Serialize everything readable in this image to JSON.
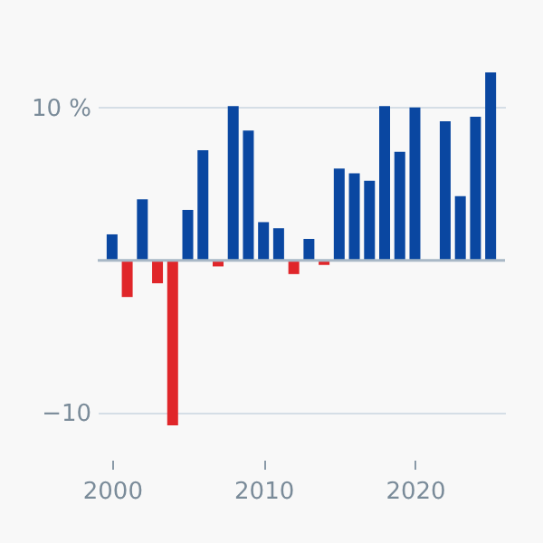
{
  "chart_data": {
    "type": "bar",
    "x": [
      2000,
      2001,
      2002,
      2003,
      2004,
      2005,
      2006,
      2007,
      2008,
      2009,
      2010,
      2011,
      2012,
      2013,
      2014,
      2015,
      2016,
      2017,
      2018,
      2019,
      2020,
      2021,
      2022,
      2023,
      2024,
      2025
    ],
    "values": [
      1.7,
      -2.4,
      4.0,
      -1.5,
      -10.8,
      3.3,
      7.2,
      -0.4,
      10.1,
      8.5,
      2.5,
      2.1,
      -0.9,
      1.4,
      -0.3,
      6.0,
      5.7,
      5.2,
      10.1,
      7.1,
      10.0,
      null,
      9.1,
      4.2,
      9.4,
      12.3
    ],
    "colors": [
      "#0a47a1",
      "#e0262a",
      "#0a47a1",
      "#e0262a",
      "#e0262a",
      "#0a47a1",
      "#0a47a1",
      "#e0262a",
      "#0a47a1",
      "#0a47a1",
      "#0a47a1",
      "#0a47a1",
      "#e0262a",
      "#0a47a1",
      "#e0262a",
      "#0a47a1",
      "#0a47a1",
      "#0a47a1",
      "#0a47a1",
      "#0a47a1",
      "#0a47a1",
      "#0a47a1",
      "#0a47a1",
      "#0a47a1",
      "#0a47a1",
      "#0a47a1"
    ],
    "xlim": [
      1999.65,
      2025.35
    ],
    "xticks": [
      2000,
      2010,
      2020
    ],
    "ylim": [
      -10.8,
      12.3
    ],
    "yticks": [
      {
        "value": -10,
        "label": "−10"
      },
      {
        "value": 10,
        "label": "10 %"
      }
    ],
    "ref_lines": [
      {
        "axis": "y",
        "value": 0,
        "color": "#a9b8c6"
      }
    ],
    "grid": "y"
  }
}
